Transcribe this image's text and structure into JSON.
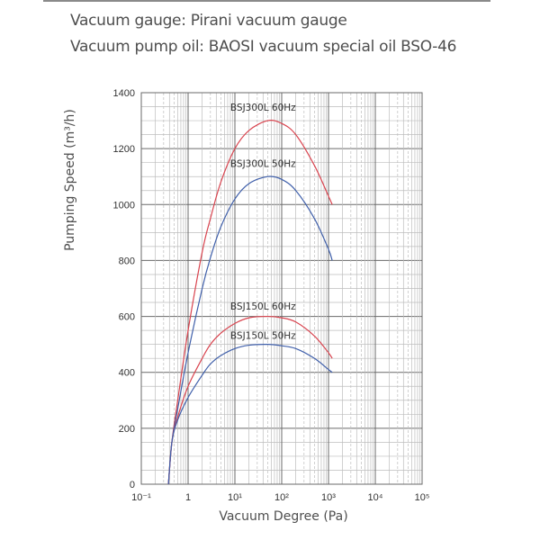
{
  "header": {
    "line1": "Vacuum gauge: Pirani vacuum gauge",
    "line2": "Vacuum pump oil: BAOSI  vacuum special oil BSO-46"
  },
  "colors": {
    "red_series": "#d9444f",
    "blue_series": "#3f5faa",
    "grid_major": "#6a6a6a",
    "grid_minor": "#bdbdbd"
  },
  "chart_data": {
    "type": "line",
    "title": "",
    "xlabel": "Vacuum Degree (Pa)",
    "ylabel": "Pumping Speed (m³/h)",
    "xscale": "log",
    "xlim": [
      0.1,
      100000
    ],
    "ylim": [
      0,
      1400
    ],
    "x_tick_labels": [
      "10⁻¹",
      "1",
      "10¹",
      "10²",
      "10³",
      "10⁴",
      "10⁵"
    ],
    "x_ticks": [
      0.1,
      1,
      10,
      100,
      1000,
      10000,
      100000
    ],
    "y_ticks": [
      0,
      200,
      400,
      600,
      800,
      1000,
      1200,
      1400
    ],
    "grid": true,
    "legend_position": "inline labels above curves",
    "series": [
      {
        "name": "BSJ300L 60Hz",
        "color": "#d9444f",
        "x": [
          0.38,
          0.45,
          0.6,
          1,
          2,
          3,
          5,
          10,
          20,
          50,
          100,
          200,
          500,
          1000,
          1200
        ],
        "values": [
          0,
          150,
          300,
          550,
          830,
          950,
          1080,
          1200,
          1265,
          1300,
          1290,
          1250,
          1140,
          1030,
          1000
        ]
      },
      {
        "name": "BSJ300L 50Hz",
        "color": "#3f5faa",
        "x": [
          0.38,
          0.45,
          0.6,
          1,
          2,
          3,
          5,
          10,
          20,
          50,
          100,
          200,
          500,
          1000,
          1200
        ],
        "values": [
          0,
          150,
          270,
          470,
          700,
          810,
          920,
          1020,
          1075,
          1100,
          1090,
          1050,
          950,
          840,
          800
        ]
      },
      {
        "name": "BSJ150L 60Hz",
        "color": "#d9444f",
        "x": [
          0.38,
          0.45,
          0.6,
          1,
          2,
          3,
          5,
          10,
          20,
          50,
          100,
          200,
          500,
          1000,
          1200
        ],
        "values": [
          0,
          150,
          240,
          350,
          450,
          500,
          540,
          575,
          595,
          600,
          595,
          580,
          530,
          470,
          450
        ]
      },
      {
        "name": "BSJ150L 50Hz",
        "color": "#3f5faa",
        "x": [
          0.38,
          0.45,
          0.6,
          1,
          2,
          3,
          5,
          10,
          20,
          50,
          100,
          200,
          500,
          1000,
          1200
        ],
        "values": [
          0,
          150,
          230,
          310,
          390,
          430,
          460,
          485,
          497,
          500,
          495,
          485,
          450,
          410,
          400
        ]
      }
    ],
    "annotations": [
      {
        "text": "BSJ300L 60Hz",
        "x": 40,
        "y": 1335
      },
      {
        "text": "BSJ300L 50Hz",
        "x": 40,
        "y": 1135
      },
      {
        "text": "BSJ150L 60Hz",
        "x": 40,
        "y": 625
      },
      {
        "text": "BSJ150L 50Hz",
        "x": 40,
        "y": 520
      }
    ]
  }
}
